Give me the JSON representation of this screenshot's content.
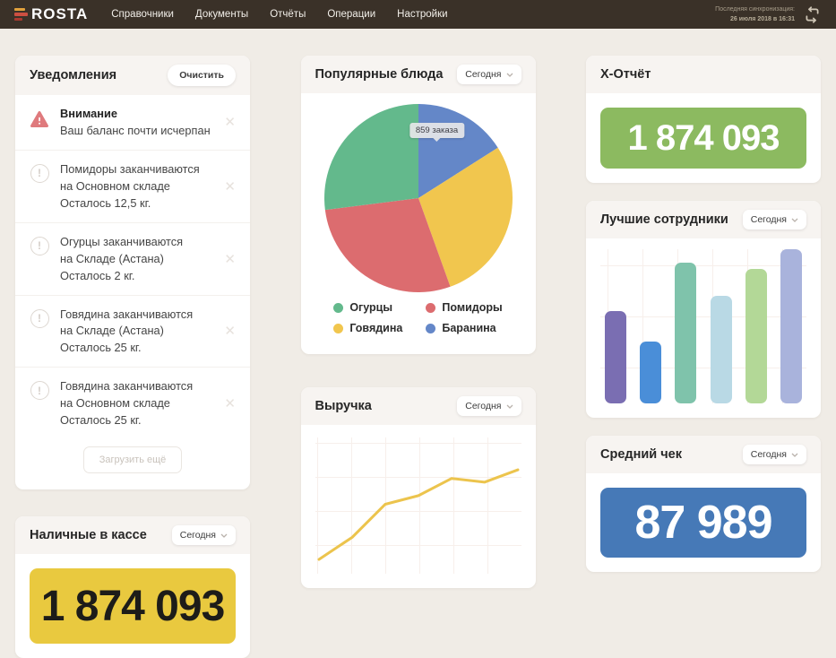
{
  "navbar": {
    "brand": "ROSTA",
    "menu": [
      "Справочники",
      "Документы",
      "Отчёты",
      "Операции",
      "Настройки"
    ],
    "sync_label": "Последняя синхронизация:",
    "sync_time": "26 июля 2018 в 16:31"
  },
  "notifications": {
    "title": "Уведомления",
    "clear_button": "Очистить",
    "load_more_button": "Загрузить ещё",
    "items": [
      {
        "type": "warning",
        "title": "Внимание",
        "lines": [
          "Ваш баланс почти исчерпан"
        ]
      },
      {
        "type": "info",
        "lines": [
          "Помидоры заканчиваются",
          "на Основном складе",
          "Осталось 12,5 кг."
        ]
      },
      {
        "type": "info",
        "lines": [
          "Огурцы заканчиваются",
          "на Складе (Астана)",
          "Осталось 2 кг."
        ]
      },
      {
        "type": "info",
        "lines": [
          "Говядина заканчиваются",
          "на Складе (Астана)",
          "Осталось 25 кг."
        ]
      },
      {
        "type": "info",
        "lines": [
          "Говядина заканчиваются",
          "на Основном складе",
          "Осталось 25 кг."
        ]
      }
    ]
  },
  "cards": {
    "popular_dishes": {
      "title": "Популярные блюда",
      "period": "Сегодня"
    },
    "x_report": {
      "title": "Х-Отчёт",
      "value": "1 874 093",
      "box_color": "#8cba60",
      "text_color": "#ffffff"
    },
    "top_employees": {
      "title": "Лучшие сотрудники",
      "period": "Сегодня"
    },
    "revenue": {
      "title": "Выручка",
      "period": "Сегодня"
    },
    "cash": {
      "title": "Наличные в кассе",
      "period": "Сегодня",
      "value": "1 874 093",
      "box_color": "#e9c93f",
      "text_color": "#1d1c19"
    },
    "avg_check": {
      "title": "Средний чек",
      "period": "Сегодня",
      "value": "87 989",
      "box_color": "#4679b7",
      "text_color": "#ffffff"
    }
  },
  "chart_data": [
    {
      "id": "popular-dishes",
      "type": "pie",
      "title": "Популярные блюда",
      "tooltip": "859 заказа",
      "tooltip_slice": "Баранина",
      "slices": [
        {
          "label": "Баранина",
          "value": 16,
          "color": "#6487c8"
        },
        {
          "label": "Говядина",
          "value": 28.5,
          "color": "#f1c64e"
        },
        {
          "label": "Помидоры",
          "value": 28.5,
          "color": "#dc6c6f"
        },
        {
          "label": "Огурцы",
          "value": 27,
          "color": "#63b98c"
        }
      ],
      "legend_order": [
        "Огурцы",
        "Помидоры",
        "Говядина",
        "Баранина"
      ],
      "legend_position": "bottom"
    },
    {
      "id": "top-employees",
      "type": "bar",
      "title": "Лучшие сотрудники",
      "values": [
        60,
        40,
        91,
        70,
        87,
        100
      ],
      "colors": [
        "#7a6eb2",
        "#4a8ed8",
        "#7fc3ab",
        "#b9d9e5",
        "#b3d897",
        "#a9b3dc"
      ],
      "ylim": [
        0,
        100
      ],
      "grid": true
    },
    {
      "id": "revenue",
      "type": "line",
      "title": "Выручка",
      "x": [
        0,
        1,
        2,
        3,
        4,
        5,
        6
      ],
      "values": [
        8,
        26,
        53,
        60,
        74,
        71,
        81
      ],
      "ylim": [
        0,
        100
      ],
      "color": "#ecc44d",
      "grid": true
    }
  ]
}
